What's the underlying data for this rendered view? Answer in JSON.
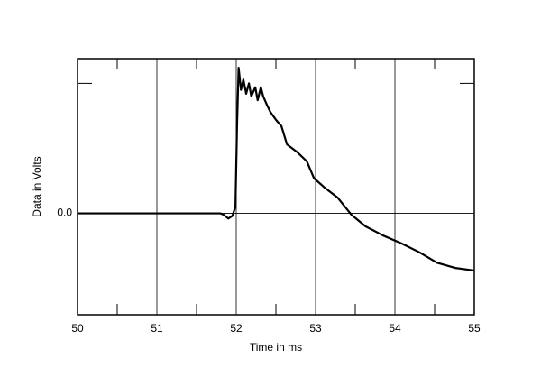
{
  "chart_data": {
    "type": "line",
    "xlabel": "Time in ms",
    "ylabel": "Data in Volts",
    "x": [
      50,
      51.8,
      51.84,
      51.9,
      51.95,
      51.99,
      52.01,
      52.03,
      52.06,
      52.09,
      52.125,
      52.16,
      52.19,
      52.24,
      52.27,
      52.31,
      52.34,
      52.39,
      52.43,
      52.5,
      52.57,
      52.64,
      52.77,
      52.89,
      52.98,
      53.11,
      53.28,
      53.45,
      53.63,
      53.85,
      54.08,
      54.31,
      54.53,
      54.76,
      55
    ],
    "series": [
      {
        "color": "#000000",
        "values": [
          0,
          0,
          -0.01,
          -0.04,
          -0.02,
          0.05,
          0.67,
          1.12,
          0.95,
          1.03,
          0.92,
          1.0,
          0.9,
          0.97,
          0.87,
          0.97,
          0.9,
          0.83,
          0.78,
          0.72,
          0.67,
          0.53,
          0.47,
          0.4,
          0.27,
          0.2,
          0.12,
          -0.01,
          -0.1,
          -0.17,
          -0.23,
          -0.3,
          -0.38,
          -0.42,
          -0.44
        ]
      }
    ],
    "xlim": [
      50,
      55
    ],
    "xticks": [
      50,
      51,
      52,
      53,
      54,
      55
    ],
    "ylim": [
      -0.78,
      1.19
    ],
    "yticks": [
      {
        "value": 0,
        "label": "0.0"
      }
    ],
    "xminor": [
      50.5,
      51.5,
      52.5,
      53.5,
      54.5
    ],
    "yminor": [
      1
    ],
    "grid": true
  }
}
